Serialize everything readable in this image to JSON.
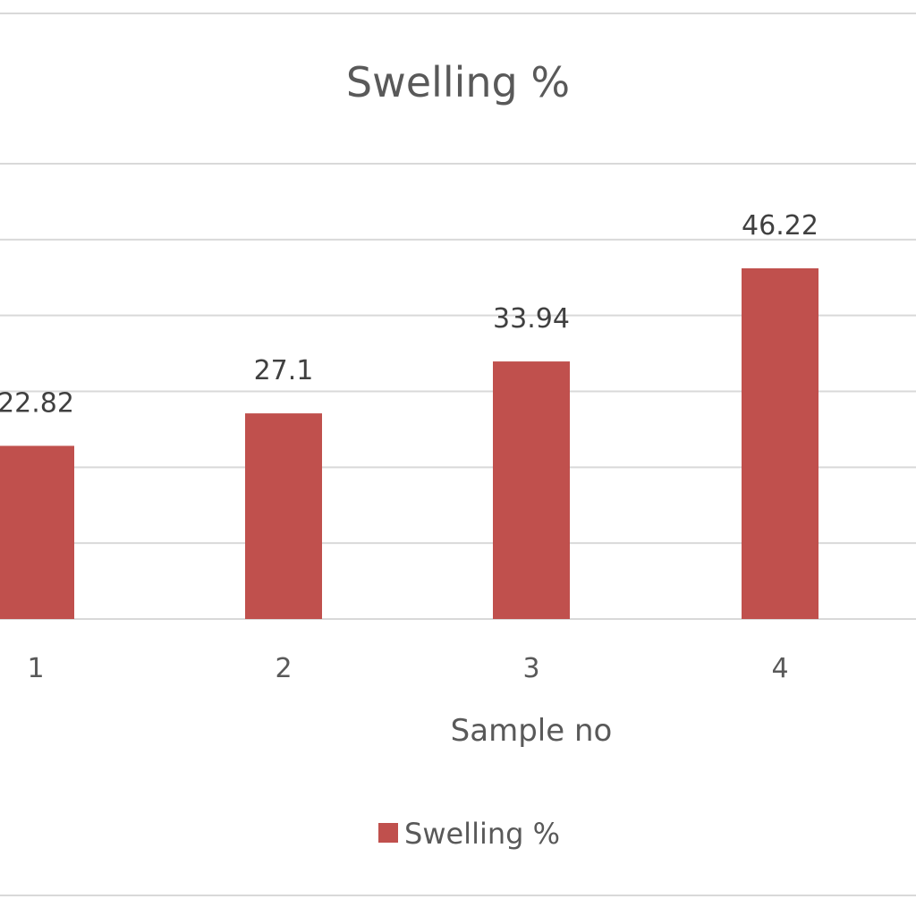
{
  "chart_data": {
    "type": "bar",
    "title": "Swelling %",
    "xlabel": "Sample no",
    "ylabel": "",
    "categories": [
      "1",
      "2",
      "3",
      "4"
    ],
    "series": [
      {
        "name": "Swelling %",
        "values": [
          22.82,
          27.1,
          33.94,
          46.22
        ],
        "color": "#c0504d"
      }
    ],
    "ylim": [
      0,
      60
    ],
    "grid": true,
    "legend": "bottom",
    "data_labels": true
  }
}
